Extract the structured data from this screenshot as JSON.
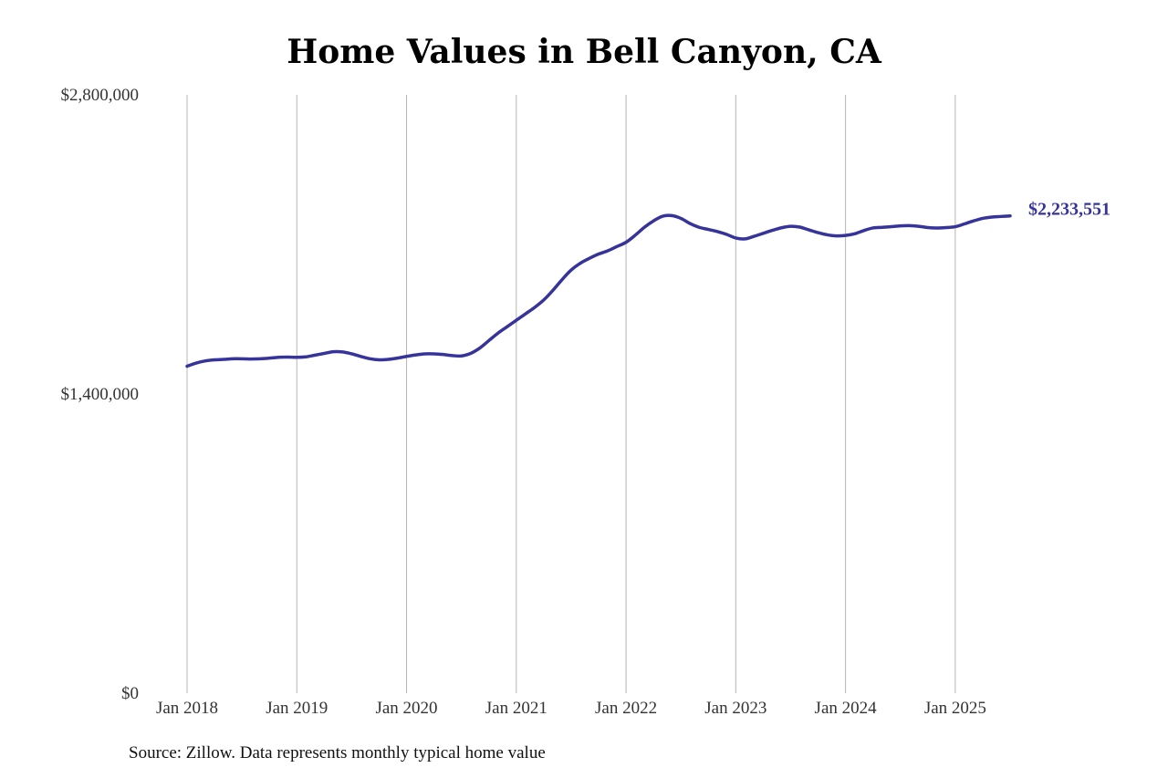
{
  "chart_data": {
    "type": "line",
    "title": "Home Values in Bell Canyon, CA",
    "source": "Source: Zillow. Data represents monthly typical home value",
    "xlabel": "",
    "ylabel": "",
    "ylim": [
      0,
      2800000
    ],
    "y_ticks": [
      {
        "value": 0,
        "label": "$0"
      },
      {
        "value": 1400000,
        "label": "$1,400,000"
      },
      {
        "value": 2800000,
        "label": "$2,800,000"
      }
    ],
    "x_ticks": [
      {
        "date": "2018-01",
        "label": "Jan 2018"
      },
      {
        "date": "2019-01",
        "label": "Jan 2019"
      },
      {
        "date": "2020-01",
        "label": "Jan 2020"
      },
      {
        "date": "2021-01",
        "label": "Jan 2021"
      },
      {
        "date": "2022-01",
        "label": "Jan 2022"
      },
      {
        "date": "2023-01",
        "label": "Jan 2023"
      },
      {
        "date": "2024-01",
        "label": "Jan 2024"
      },
      {
        "date": "2025-01",
        "label": "Jan 2025"
      }
    ],
    "xlim": [
      "2018-01",
      "2025-07"
    ],
    "grid": "vertical",
    "color": "#36339a",
    "end_label": "$2,233,551",
    "series": [
      {
        "x": [
          "2018-01",
          "2018-02",
          "2018-03",
          "2018-04",
          "2018-05",
          "2018-06",
          "2018-07",
          "2018-08",
          "2018-09",
          "2018-10",
          "2018-11",
          "2018-12",
          "2019-01",
          "2019-02",
          "2019-03",
          "2019-04",
          "2019-05",
          "2019-06",
          "2019-07",
          "2019-08",
          "2019-09",
          "2019-10",
          "2019-11",
          "2019-12",
          "2020-01",
          "2020-02",
          "2020-03",
          "2020-04",
          "2020-05",
          "2020-06",
          "2020-07",
          "2020-08",
          "2020-09",
          "2020-10",
          "2020-11",
          "2020-12",
          "2021-01",
          "2021-02",
          "2021-03",
          "2021-04",
          "2021-05",
          "2021-06",
          "2021-07",
          "2021-08",
          "2021-09",
          "2021-10",
          "2021-11",
          "2021-12",
          "2022-01",
          "2022-02",
          "2022-03",
          "2022-04",
          "2022-05",
          "2022-06",
          "2022-07",
          "2022-08",
          "2022-09",
          "2022-10",
          "2022-11",
          "2022-12",
          "2023-01",
          "2023-02",
          "2023-03",
          "2023-04",
          "2023-05",
          "2023-06",
          "2023-07",
          "2023-08",
          "2023-09",
          "2023-10",
          "2023-11",
          "2023-12",
          "2024-01",
          "2024-02",
          "2024-03",
          "2024-04",
          "2024-05",
          "2024-06",
          "2024-07",
          "2024-08",
          "2024-09",
          "2024-10",
          "2024-11",
          "2024-12",
          "2025-01",
          "2025-02",
          "2025-03",
          "2025-04",
          "2025-05",
          "2025-06",
          "2025-07"
        ],
        "values": [
          1530000,
          1545000,
          1555000,
          1560000,
          1562000,
          1565000,
          1565000,
          1564000,
          1565000,
          1568000,
          1572000,
          1573000,
          1572000,
          1574000,
          1582000,
          1590000,
          1598000,
          1597000,
          1588000,
          1576000,
          1565000,
          1560000,
          1562000,
          1568000,
          1576000,
          1583000,
          1588000,
          1588000,
          1585000,
          1580000,
          1578000,
          1590000,
          1615000,
          1650000,
          1685000,
          1715000,
          1745000,
          1775000,
          1805000,
          1840000,
          1885000,
          1935000,
          1980000,
          2012000,
          2035000,
          2055000,
          2070000,
          2090000,
          2110000,
          2143000,
          2180000,
          2210000,
          2232000,
          2235000,
          2222000,
          2198000,
          2180000,
          2170000,
          2160000,
          2147000,
          2130000,
          2126000,
          2138000,
          2152000,
          2166000,
          2178000,
          2185000,
          2181000,
          2168000,
          2155000,
          2145000,
          2140000,
          2142000,
          2150000,
          2165000,
          2177000,
          2180000,
          2183000,
          2187000,
          2188000,
          2185000,
          2179000,
          2177000,
          2179000,
          2183000,
          2196000,
          2210000,
          2222000,
          2228000,
          2231000,
          2233551
        ]
      }
    ]
  }
}
